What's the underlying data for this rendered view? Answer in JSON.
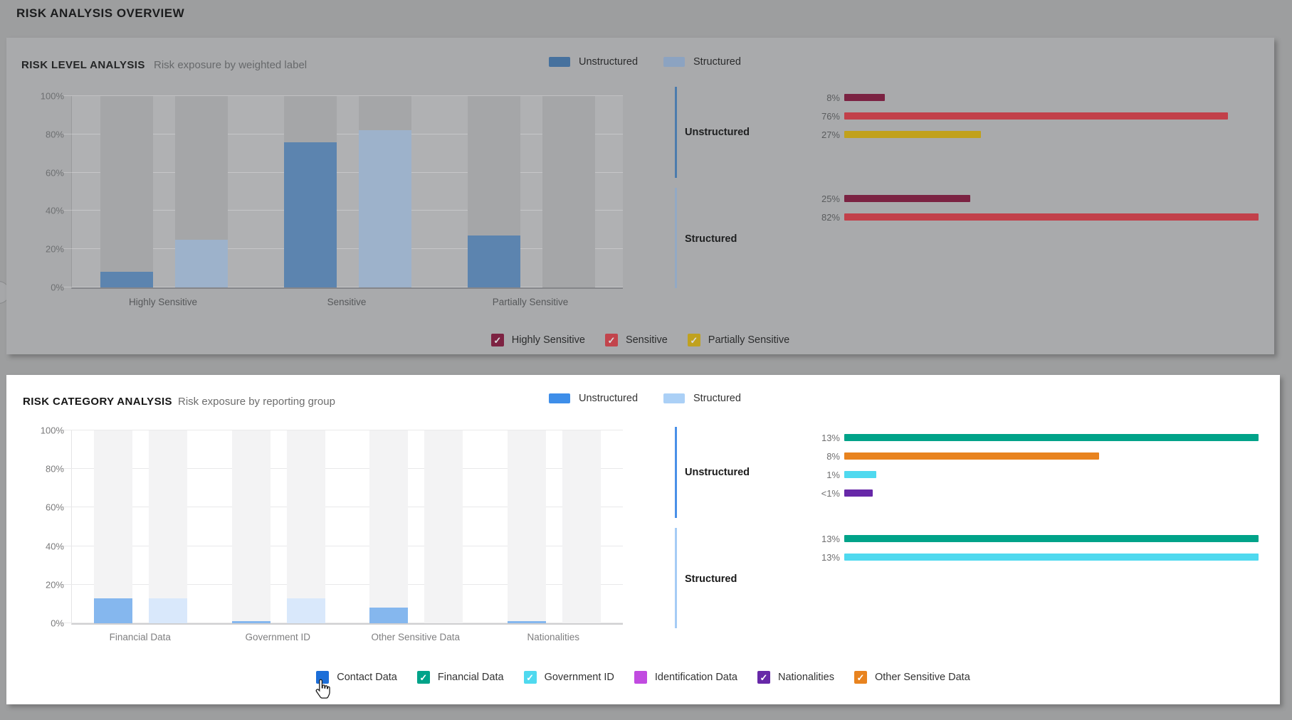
{
  "page": {
    "title": "RISK ANALYSIS OVERVIEW",
    "background_color": "#9D9E9F",
    "cursor": "hand-pointer over Contact Data checkbox"
  },
  "panels": [
    {
      "title": "RISK LEVEL ANALYSIS",
      "subtitle": "Risk exposure by weighted label",
      "dimmed": true,
      "series_legend": [
        {
          "label": "Unstructured",
          "color": "#46719E"
        },
        {
          "label": "Structured",
          "color": "#8CA3C1"
        }
      ],
      "category_legend": [
        {
          "label": "Highly Sensitive",
          "color": "#7D2242",
          "checked": true
        },
        {
          "label": "Sensitive",
          "color": "#C2444C",
          "checked": true
        },
        {
          "label": "Partially Sensitive",
          "color": "#C0A11F",
          "checked": true
        }
      ]
    },
    {
      "title": "RISK CATEGORY ANALYSIS",
      "subtitle": "Risk exposure by reporting group",
      "dimmed": false,
      "series_legend": [
        {
          "label": "Unstructured",
          "color": "#3E8EE9"
        },
        {
          "label": "Structured",
          "color": "#ABD0F6"
        }
      ],
      "category_legend": [
        {
          "label": "Contact Data",
          "color": "#1C6ED8",
          "checked": false,
          "cursor_here": true
        },
        {
          "label": "Financial Data",
          "color": "#00A389",
          "checked": true
        },
        {
          "label": "Government ID",
          "color": "#4FD9EF",
          "checked": true
        },
        {
          "label": "Identification Data",
          "color": "#C14BE0",
          "checked": false
        },
        {
          "label": "Nationalities",
          "color": "#6728A8",
          "checked": true
        },
        {
          "label": "Other Sensitive Data",
          "color": "#E8831F",
          "checked": true
        }
      ]
    }
  ],
  "chart_data": [
    {
      "type": "bar",
      "title": "RISK LEVEL ANALYSIS",
      "subtitle": "Risk exposure by weighted label",
      "categories": [
        "Highly Sensitive",
        "Sensitive",
        "Partially Sensitive"
      ],
      "series": [
        {
          "name": "Unstructured",
          "color": "#5C84AF",
          "values": [
            8,
            76,
            27
          ]
        },
        {
          "name": "Structured",
          "color": "#9DB2CB",
          "values": [
            25,
            82,
            0
          ]
        }
      ],
      "ylim": [
        0,
        100
      ],
      "y_ticks": [
        0,
        20,
        40,
        60,
        80,
        100
      ],
      "y_tick_format": "percent",
      "grid": true,
      "summary": {
        "max_scale": 82,
        "groups": [
          {
            "name": "Unstructured",
            "accent_color": "#4C7CAD",
            "rows": [
              {
                "label": "8%",
                "value": 8,
                "color": "#7B2242",
                "category": "Highly Sensitive"
              },
              {
                "label": "76%",
                "value": 76,
                "color": "#C2404A",
                "category": "Sensitive"
              },
              {
                "label": "27%",
                "value": 27,
                "color": "#C1A11C",
                "category": "Partially Sensitive"
              }
            ]
          },
          {
            "name": "Structured",
            "accent_color": "#93A9C4",
            "rows": [
              {
                "label": "25%",
                "value": 25,
                "color": "#7B2242",
                "category": "Highly Sensitive"
              },
              {
                "label": "82%",
                "value": 82,
                "color": "#C2404A",
                "category": "Sensitive"
              }
            ]
          }
        ]
      }
    },
    {
      "type": "bar",
      "title": "RISK CATEGORY ANALYSIS",
      "subtitle": "Risk exposure by reporting group",
      "categories": [
        "Financial Data",
        "Government ID",
        "Other Sensitive Data",
        "Nationalities"
      ],
      "series": [
        {
          "name": "Unstructured",
          "color": "#85B7EE",
          "values": [
            13,
            1,
            8,
            1
          ]
        },
        {
          "name": "Structured",
          "color": "#D9E8FB",
          "values": [
            13,
            13,
            0,
            0
          ]
        }
      ],
      "ylim": [
        0,
        100
      ],
      "y_ticks": [
        0,
        20,
        40,
        60,
        80,
        100
      ],
      "y_tick_format": "percent",
      "grid": true,
      "summary": {
        "max_scale": 13,
        "groups": [
          {
            "name": "Unstructured",
            "accent_color": "#4A90E8",
            "rows": [
              {
                "label": "13%",
                "value": 13,
                "color": "#00A389",
                "category": "Financial Data"
              },
              {
                "label": "8%",
                "value": 8,
                "color": "#E8831F",
                "category": "Other Sensitive Data"
              },
              {
                "label": "1%",
                "value": 1,
                "color": "#4FD9EF",
                "category": "Government ID"
              },
              {
                "label": "<1%",
                "value": 0.9,
                "color": "#6728A8",
                "category": "Nationalities"
              }
            ]
          },
          {
            "name": "Structured",
            "accent_color": "#A5CCF5",
            "rows": [
              {
                "label": "13%",
                "value": 13,
                "color": "#00A389",
                "category": "Financial Data"
              },
              {
                "label": "13%",
                "value": 13,
                "color": "#4FD9EF",
                "category": "Government ID"
              }
            ]
          }
        ]
      }
    }
  ]
}
